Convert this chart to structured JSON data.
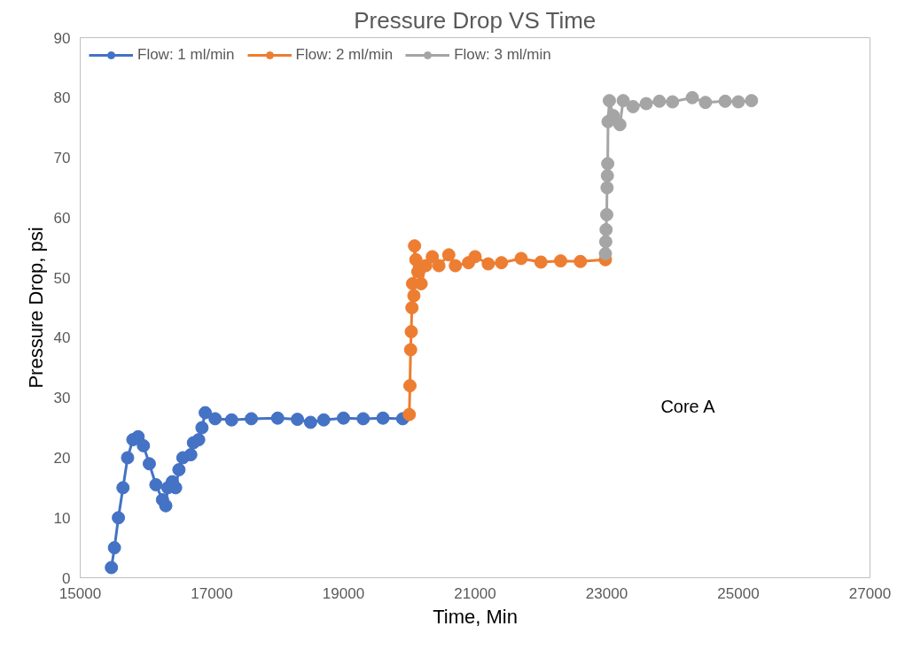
{
  "chart_data": {
    "type": "line",
    "title": "Pressure Drop VS Time",
    "xlabel": "Time, Min",
    "ylabel": "Pressure Drop, psi",
    "xlim": [
      15000,
      27000
    ],
    "xticks": [
      15000,
      17000,
      19000,
      21000,
      23000,
      25000,
      27000
    ],
    "ylim": [
      0,
      90
    ],
    "yticks": [
      0,
      10,
      20,
      30,
      40,
      50,
      60,
      70,
      80,
      90
    ],
    "grid": false,
    "legend": "top left",
    "marker": "circle",
    "line_style": "solid",
    "annotations": [
      "Core A"
    ],
    "series": [
      {
        "name": "Flow: 1 ml/min",
        "color": "#4472c4",
        "x": [
          15474,
          15520,
          15580,
          15650,
          15720,
          15800,
          15880,
          15960,
          16050,
          16150,
          16250,
          16300,
          16330,
          16400,
          16450,
          16500,
          16560,
          16680,
          16720,
          16800,
          16850,
          16900,
          17050,
          17300,
          17600,
          18000,
          18300,
          18500,
          18700,
          19000,
          19300,
          19600,
          19900
        ],
        "values": [
          1.7,
          5,
          10,
          15,
          20,
          23,
          23.5,
          22,
          19,
          15.5,
          13,
          12,
          15,
          16,
          15,
          18,
          20,
          20.5,
          22.5,
          23,
          25,
          27.5,
          26.5,
          26.3,
          26.5,
          26.6,
          26.4,
          25.9,
          26.3,
          26.6,
          26.5,
          26.6,
          26.5
        ]
      },
      {
        "name": "Flow: 2 ml/min",
        "color": "#ed7d31",
        "x": [
          20000,
          20010,
          20020,
          20030,
          20040,
          20050,
          20070,
          20080,
          20100,
          20130,
          20180,
          20250,
          20350,
          20450,
          20600,
          20700,
          20900,
          21000,
          21200,
          21400,
          21700,
          22000,
          22300,
          22600,
          22980
        ],
        "values": [
          27.2,
          32,
          38,
          41,
          45,
          49,
          47,
          55.3,
          53,
          51,
          49,
          52,
          53.5,
          52,
          53.8,
          52,
          52.5,
          53.5,
          52.3,
          52.5,
          53.2,
          52.6,
          52.8,
          52.7,
          53
        ]
      },
      {
        "name": "Flow: 3 ml/min",
        "color": "#a5a5a5",
        "x": [
          22980,
          22985,
          22990,
          23000,
          23005,
          23010,
          23015,
          23020,
          23040,
          23100,
          23200,
          23250,
          23400,
          23600,
          23800,
          24000,
          24300,
          24500,
          24800,
          25000,
          25200
        ],
        "values": [
          54,
          56,
          58,
          60.5,
          65,
          67,
          69,
          76,
          79.5,
          77,
          75.5,
          79.5,
          78.5,
          79,
          79.4,
          79.3,
          80,
          79.2,
          79.4,
          79.3,
          79.5
        ]
      }
    ]
  }
}
